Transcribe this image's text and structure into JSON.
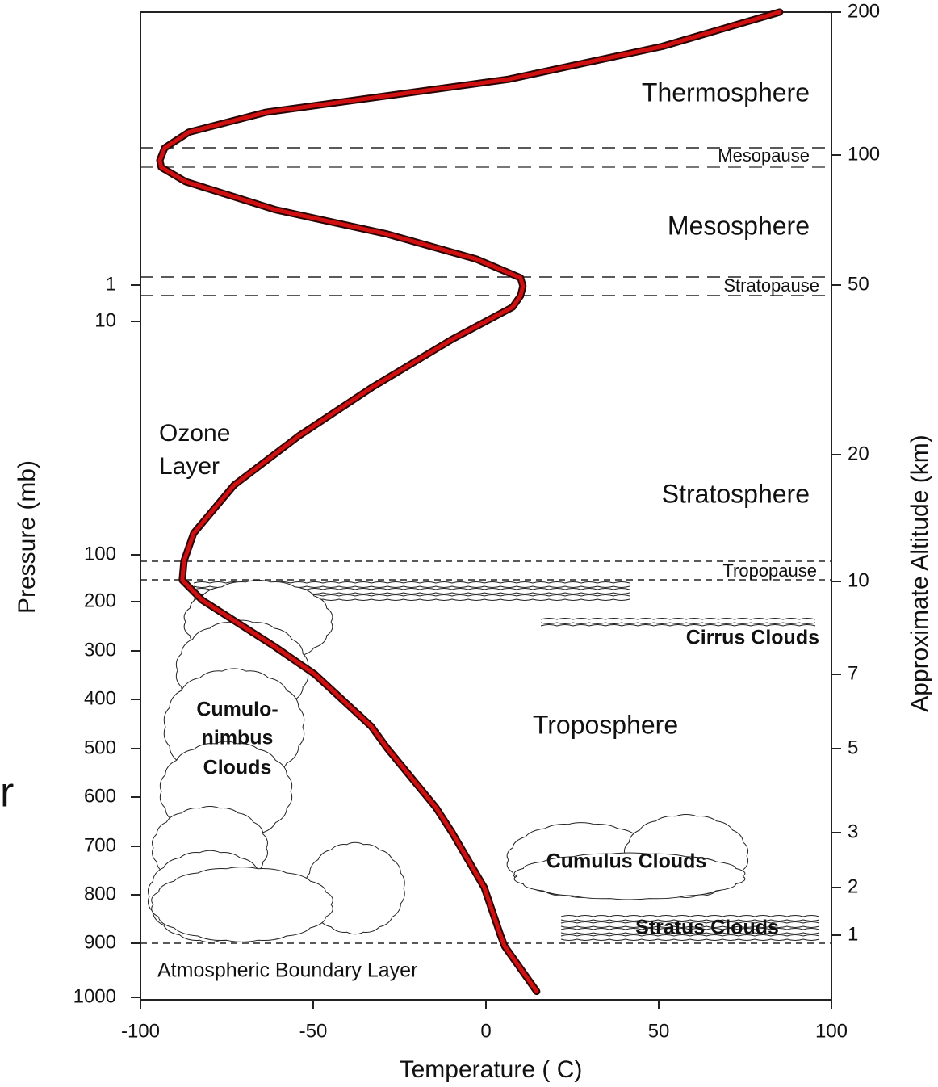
{
  "chart_data": {
    "type": "line",
    "xlabel": "Temperature ( C)",
    "ylabel": "Pressure (mb)",
    "y2label": "Approximate Altitude (km)",
    "xlim": [
      -100,
      100
    ],
    "xticks": [
      -100,
      -50,
      0,
      50,
      100
    ],
    "yticks": [
      1,
      10,
      100,
      200,
      300,
      400,
      500,
      600,
      700,
      800,
      900,
      1000
    ],
    "y2lim": [
      0,
      200
    ],
    "y2ticks": [
      1,
      2,
      3,
      5,
      7,
      10,
      20,
      50,
      100,
      200
    ],
    "color": "#d01010",
    "temperature": [
      85,
      51,
      6.5,
      -63.5,
      -86,
      -93,
      -94.4,
      -94,
      -87,
      -61,
      -28.5,
      -2.8,
      10,
      10.7,
      10,
      7.7,
      -9.8,
      -33,
      -54.2,
      -72.9,
      -84.6,
      -87.4,
      -87.9,
      -82.2,
      -61.2,
      -49.5,
      -33.2,
      -28.5,
      -14.5,
      -9.8,
      -0.5,
      4.2,
      5.4,
      14.7
    ],
    "altitude": [
      200,
      176,
      153,
      130,
      116,
      105,
      98,
      95.3,
      89.8,
      79,
      69.6,
      60,
      52.8,
      49.8,
      48.1,
      46.1,
      40.4,
      31.9,
      23.3,
      17.6,
      13.8,
      11.6,
      10.1,
      9.4,
      7.9,
      7,
      5.6,
      5,
      3.6,
      3,
      2,
      1,
      0.83,
      0.13
    ],
    "annotations": [
      "Thermosphere",
      "Mesopause",
      "Mesosphere",
      "Stratopause",
      "Ozone",
      "Layer",
      "Stratosphere",
      "Tropopause",
      "Cirrus Clouds",
      "Cumulo-",
      "nimbus",
      "Clouds",
      "Troposphere",
      "Cumulus Clouds",
      "Stratus Clouds",
      "Atmospheric Boundary Layer",
      "r"
    ]
  }
}
